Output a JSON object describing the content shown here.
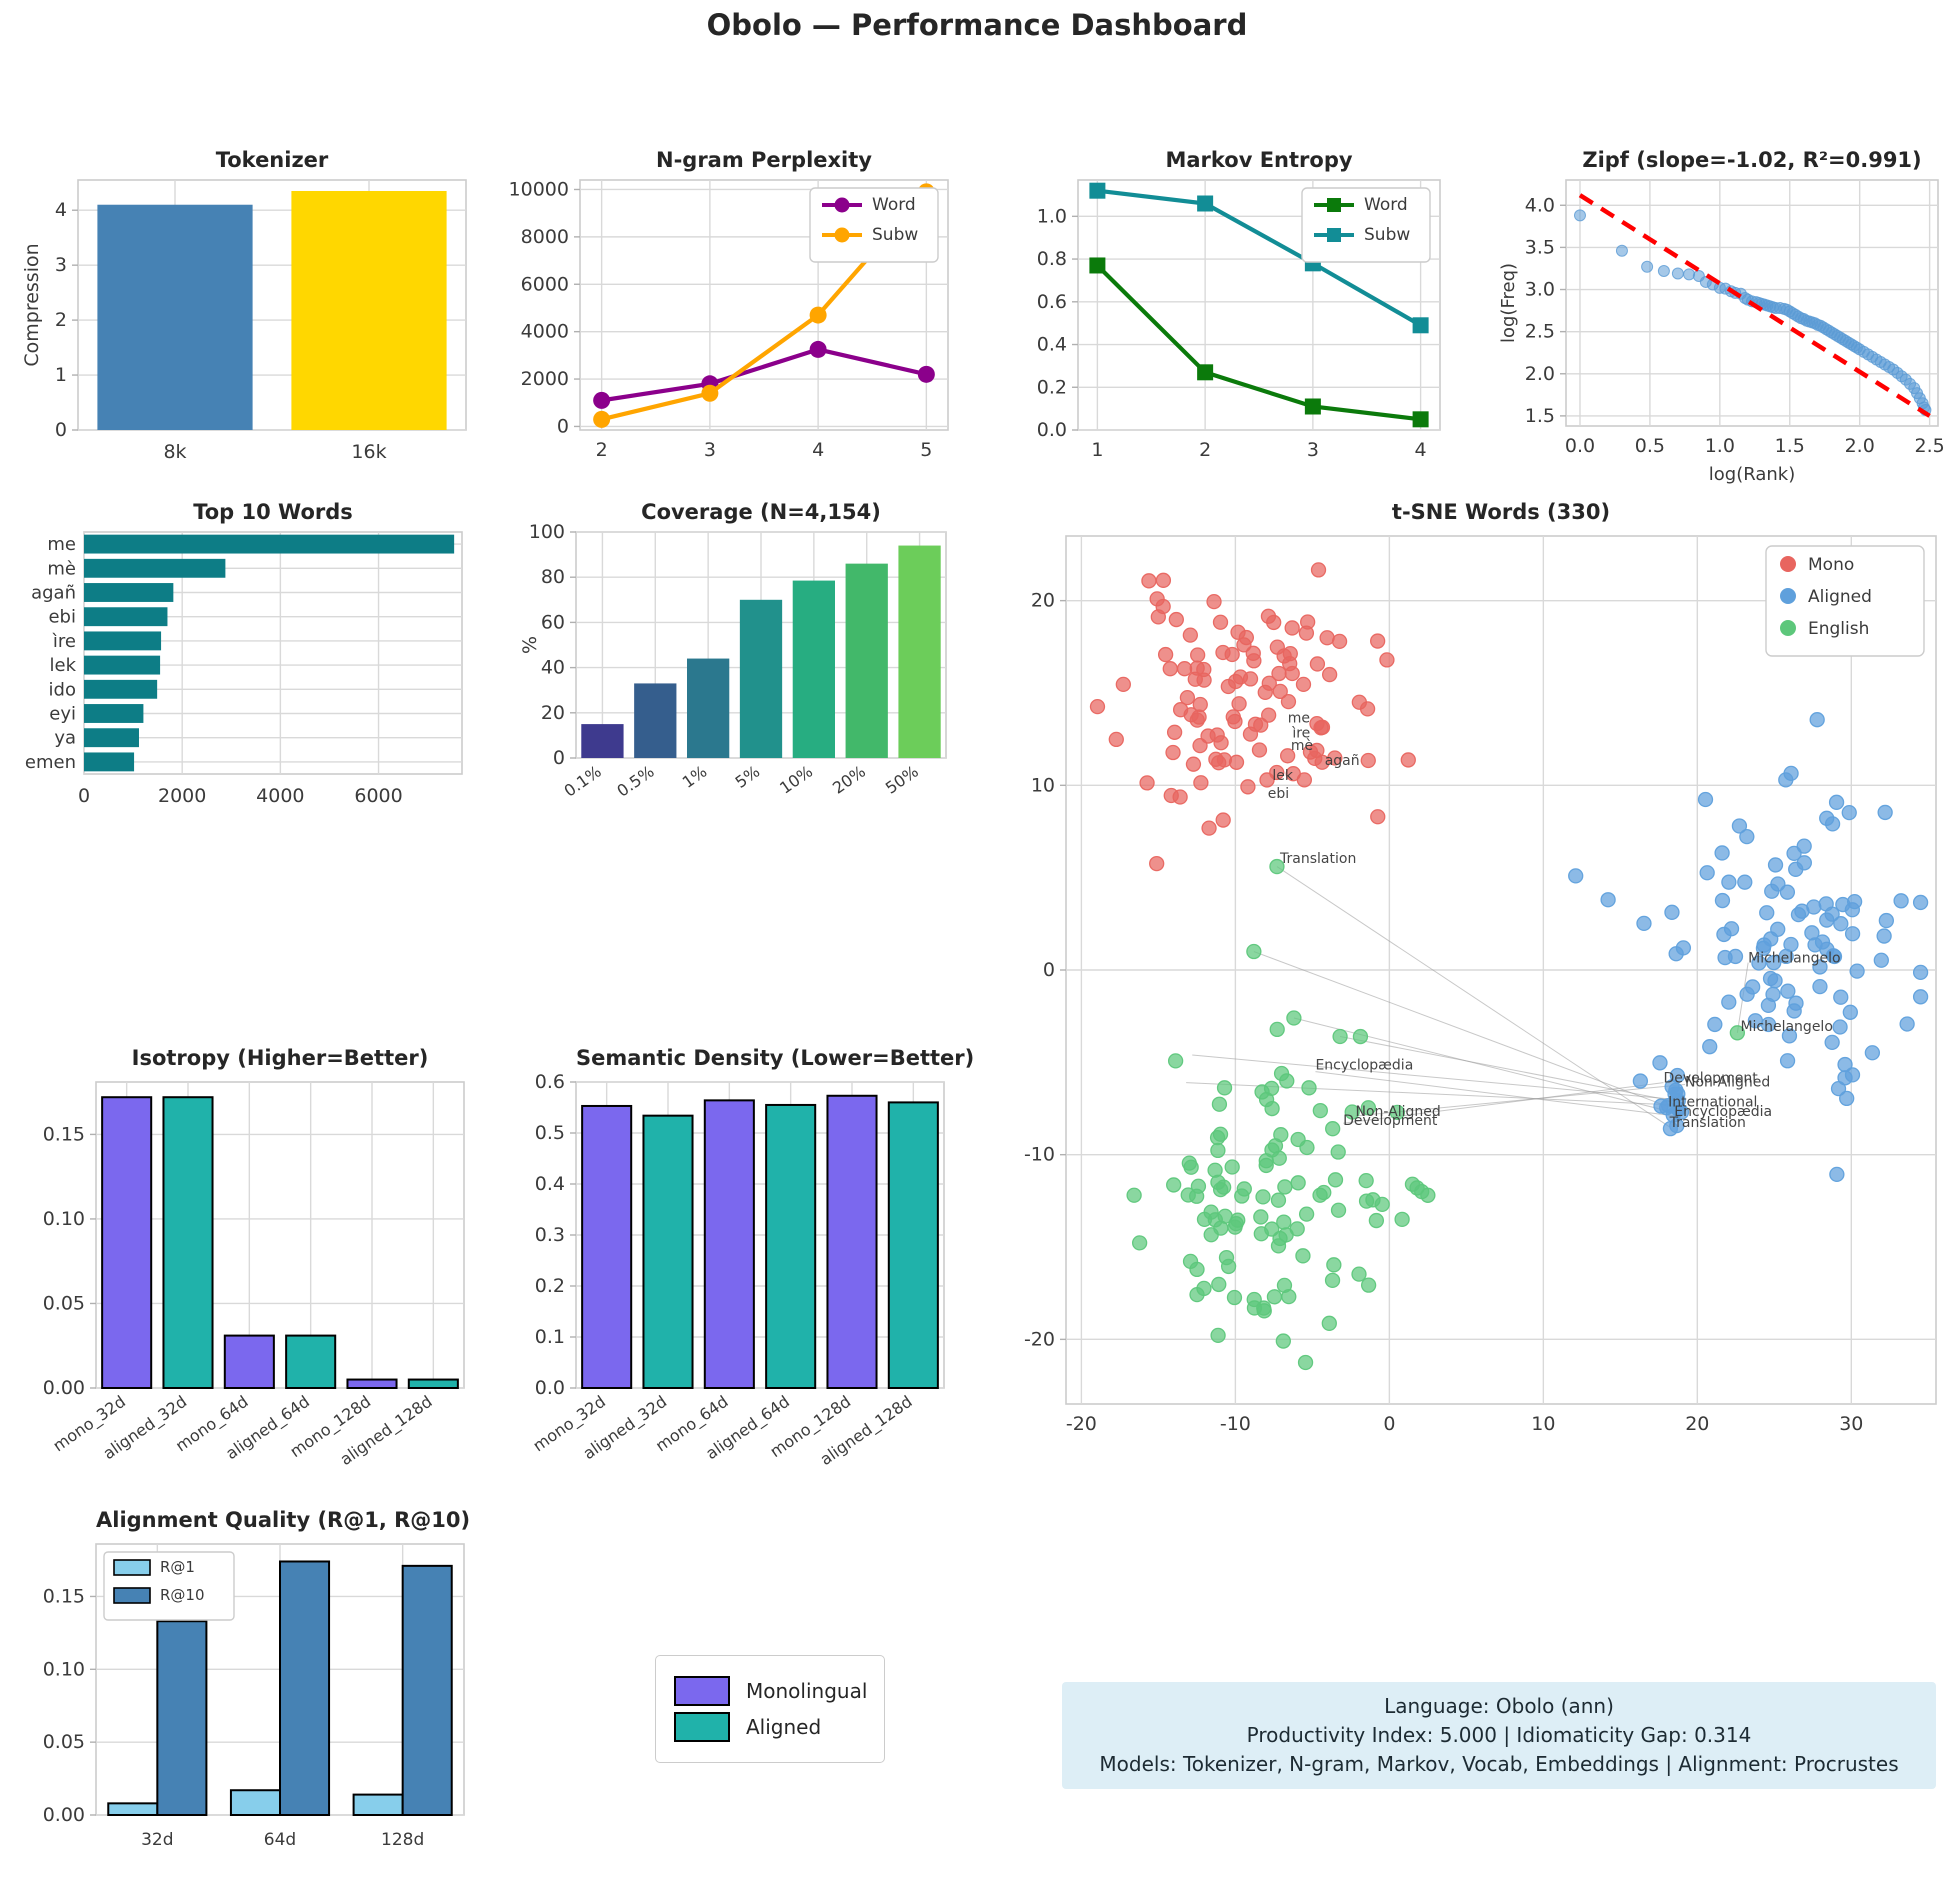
{
  "header": {
    "title": "Obolo — Performance Dashboard"
  },
  "info_box": {
    "lines": [
      "Language: Obolo (ann)",
      "Productivity Index: 5.000  |  Idiomaticity Gap: 0.314",
      "Models: Tokenizer, N-gram, Markov, Vocab, Embeddings  |  Alignment: Procrustes"
    ],
    "background": "#ddeef6"
  },
  "legend_box": {
    "items": [
      {
        "label": "Monolingual",
        "color": "#7b68ee"
      },
      {
        "label": "Aligned",
        "color": "#20b2aa"
      }
    ]
  },
  "chart_data": [
    {
      "id": "tokenizer",
      "type": "bar",
      "title": "Tokenizer",
      "ylabel": "Compression",
      "categories": [
        "8k",
        "16k"
      ],
      "values": [
        4.1,
        4.35
      ],
      "bar_colors": [
        "#4682b4",
        "#ffd700"
      ],
      "ylim": [
        0,
        4.55
      ],
      "yticks": [
        0,
        1,
        2,
        3,
        4
      ],
      "ytick_labels": [
        "0",
        "1",
        "2",
        "3",
        "4"
      ]
    },
    {
      "id": "ngram",
      "type": "line",
      "title": "N-gram Perplexity",
      "x": [
        2,
        3,
        4,
        5
      ],
      "xticks": [
        2,
        3,
        4,
        5
      ],
      "xtick_labels": [
        "2",
        "3",
        "4",
        "5"
      ],
      "xlim": [
        1.8,
        5.2
      ],
      "ylim": [
        -150,
        10400
      ],
      "yticks": [
        0,
        2000,
        4000,
        6000,
        8000,
        10000
      ],
      "ytick_labels": [
        "0",
        "2000",
        "4000",
        "6000",
        "8000",
        "10000"
      ],
      "series": [
        {
          "name": "Word",
          "color": "#8b008b",
          "marker": "circle",
          "values": [
            1100,
            1800,
            3250,
            2200
          ]
        },
        {
          "name": "Subw",
          "color": "#ffa500",
          "marker": "circle",
          "values": [
            300,
            1400,
            4700,
            9900
          ]
        }
      ],
      "legend_pos": "top-right"
    },
    {
      "id": "markov",
      "type": "line",
      "title": "Markov Entropy",
      "x": [
        1,
        2,
        3,
        4
      ],
      "xticks": [
        1,
        2,
        3,
        4
      ],
      "xtick_labels": [
        "1",
        "2",
        "3",
        "4"
      ],
      "xlim": [
        0.82,
        4.18
      ],
      "ylim": [
        0,
        1.17
      ],
      "yticks": [
        0,
        0.2,
        0.4,
        0.6,
        0.8,
        1.0
      ],
      "ytick_labels": [
        "0.0",
        "0.2",
        "0.4",
        "0.6",
        "0.8",
        "1.0"
      ],
      "series": [
        {
          "name": "Word",
          "color": "#0b7a0b",
          "marker": "square",
          "values": [
            0.77,
            0.27,
            0.11,
            0.05
          ]
        },
        {
          "name": "Subw",
          "color": "#128d96",
          "marker": "square",
          "values": [
            1.12,
            1.06,
            0.78,
            0.49
          ]
        }
      ],
      "legend_pos": "top-right"
    },
    {
      "id": "zipf",
      "type": "scatter",
      "title": "Zipf (slope=-1.02, R²=0.991)",
      "xlabel": "log(Rank)",
      "ylabel": "log(Freq)",
      "xlim": [
        -0.1,
        2.56
      ],
      "ylim": [
        1.38,
        4.3
      ],
      "xticks": [
        0,
        0.5,
        1.0,
        1.5,
        2.0,
        2.5
      ],
      "xtick_labels": [
        "0.0",
        "0.5",
        "1.0",
        "1.5",
        "2.0",
        "2.5"
      ],
      "yticks": [
        1.5,
        2.0,
        2.5,
        3.0,
        3.5,
        4.0
      ],
      "ytick_labels": [
        "1.5",
        "2.0",
        "2.5",
        "3.0",
        "3.5",
        "4.0"
      ],
      "point_color": "#5b9bd5",
      "points": [
        [
          0.0,
          3.88
        ],
        [
          0.3,
          3.46
        ],
        [
          0.48,
          3.27
        ],
        [
          0.6,
          3.22
        ],
        [
          0.7,
          3.19
        ],
        [
          0.78,
          3.18
        ],
        [
          0.85,
          3.16
        ],
        [
          0.9,
          3.09
        ],
        [
          0.95,
          3.06
        ],
        [
          1.0,
          3.02
        ],
        [
          1.04,
          3.01
        ],
        [
          1.08,
          2.98
        ],
        [
          1.11,
          2.96
        ],
        [
          1.15,
          2.95
        ],
        [
          1.18,
          2.9
        ],
        [
          1.2,
          2.88
        ],
        [
          1.23,
          2.86
        ],
        [
          1.26,
          2.85
        ],
        [
          1.28,
          2.84
        ],
        [
          1.3,
          2.83
        ],
        [
          1.32,
          2.82
        ],
        [
          1.34,
          2.81
        ],
        [
          1.36,
          2.8
        ],
        [
          1.38,
          2.79
        ],
        [
          1.4,
          2.78
        ],
        [
          1.43,
          2.78
        ],
        [
          1.46,
          2.77
        ],
        [
          1.48,
          2.76
        ],
        [
          1.5,
          2.74
        ],
        [
          1.52,
          2.72
        ],
        [
          1.54,
          2.7
        ],
        [
          1.56,
          2.68
        ],
        [
          1.58,
          2.66
        ],
        [
          1.6,
          2.65
        ],
        [
          1.62,
          2.63
        ],
        [
          1.64,
          2.62
        ],
        [
          1.66,
          2.61
        ],
        [
          1.68,
          2.6
        ],
        [
          1.7,
          2.58
        ],
        [
          1.72,
          2.57
        ],
        [
          1.74,
          2.55
        ],
        [
          1.76,
          2.53
        ],
        [
          1.78,
          2.51
        ],
        [
          1.8,
          2.49
        ],
        [
          1.82,
          2.47
        ],
        [
          1.84,
          2.45
        ],
        [
          1.86,
          2.43
        ],
        [
          1.88,
          2.41
        ],
        [
          1.9,
          2.39
        ],
        [
          1.92,
          2.37
        ],
        [
          1.94,
          2.35
        ],
        [
          1.96,
          2.33
        ],
        [
          1.98,
          2.31
        ],
        [
          2.0,
          2.29
        ],
        [
          2.03,
          2.26
        ],
        [
          2.06,
          2.23
        ],
        [
          2.09,
          2.2
        ],
        [
          2.12,
          2.17
        ],
        [
          2.15,
          2.14
        ],
        [
          2.18,
          2.11
        ],
        [
          2.21,
          2.08
        ],
        [
          2.24,
          2.05
        ],
        [
          2.27,
          2.01
        ],
        [
          2.3,
          1.97
        ],
        [
          2.33,
          1.93
        ],
        [
          2.36,
          1.88
        ],
        [
          2.39,
          1.83
        ],
        [
          2.41,
          1.77
        ],
        [
          2.43,
          1.71
        ],
        [
          2.45,
          1.65
        ],
        [
          2.46,
          1.6
        ],
        [
          2.47,
          1.57
        ]
      ],
      "fit_line": {
        "x1": 0.0,
        "y1": 4.12,
        "x2": 2.5,
        "y2": 1.5,
        "color": "#ff0000"
      }
    },
    {
      "id": "top10",
      "type": "barh",
      "title": "Top 10 Words",
      "categories": [
        "me",
        "mè",
        "agañ",
        "ebi",
        "ìre",
        "lek",
        "ido",
        "eyi",
        "ya",
        "emen"
      ],
      "values": [
        7540,
        2880,
        1820,
        1700,
        1570,
        1550,
        1490,
        1210,
        1120,
        1020
      ],
      "color": "#0d7d86",
      "xlim": [
        0,
        7700
      ],
      "xticks": [
        0,
        2000,
        4000,
        6000
      ],
      "xtick_labels": [
        "0",
        "2000",
        "4000",
        "6000"
      ]
    },
    {
      "id": "coverage",
      "type": "bar",
      "title": "Coverage (N=4,154)",
      "ylabel": "%",
      "categories": [
        "0.1%",
        "0.5%",
        "1%",
        "5%",
        "10%",
        "20%",
        "50%"
      ],
      "values": [
        15,
        33,
        44,
        70,
        78.5,
        86,
        94
      ],
      "bar_colors": [
        "#3e3a8e",
        "#355e8d",
        "#2b788e",
        "#21918c",
        "#27ad81",
        "#42b86a",
        "#6ccd5a"
      ],
      "ylim": [
        0,
        100
      ],
      "yticks": [
        0,
        20,
        40,
        60,
        80,
        100
      ],
      "ytick_labels": [
        "0",
        "20",
        "40",
        "60",
        "80",
        "100"
      ],
      "rotate_xticks": true
    },
    {
      "id": "tsne",
      "type": "tsne",
      "title": "t-SNE Words (330)",
      "xlim": [
        -21,
        35.5
      ],
      "ylim": [
        -23.5,
        23.5
      ],
      "xticks": [
        -20,
        -10,
        0,
        10,
        20,
        30
      ],
      "xtick_labels": [
        "-20",
        "-10",
        "0",
        "10",
        "20",
        "30"
      ],
      "yticks": [
        -20,
        -10,
        0,
        10,
        20
      ],
      "ytick_labels": [
        "-20",
        "-10",
        "0",
        "10",
        "20"
      ],
      "legend": [
        {
          "label": "Mono",
          "color": "#e8655f"
        },
        {
          "label": "Aligned",
          "color": "#5fa0dc"
        },
        {
          "label": "English",
          "color": "#5dc77b"
        }
      ],
      "clusters": [
        {
          "name": "mono",
          "color": "#e8655f",
          "count": 105,
          "cx": -9.5,
          "cy": 14.3,
          "sx": 4.0,
          "sy": 3.0,
          "seed": 11
        },
        {
          "name": "aligned",
          "color": "#5fa0dc",
          "count": 100,
          "cx": 25.5,
          "cy": 2.3,
          "sx": 4.3,
          "sy": 4.0,
          "seed": 22
        },
        {
          "name": "aligned-sub",
          "color": "#5fa0dc",
          "count": 15,
          "cx": 18.4,
          "cy": -7.2,
          "sx": 0.5,
          "sy": 0.9,
          "seed": 33
        },
        {
          "name": "english",
          "color": "#5dc77b",
          "count": 100,
          "cx": -8.5,
          "cy": -13.0,
          "sx": 4.2,
          "sy": 4.0,
          "seed": 44
        }
      ],
      "extra_points": [
        {
          "color": "#5dc77b",
          "pts": [
            [
              -7.3,
              5.6
            ],
            [
              -8.8,
              1.0
            ],
            [
              -6.2,
              -2.6
            ],
            [
              -3.2,
              -3.6
            ],
            [
              1.8,
              -11.8
            ],
            [
              2.1,
              -12.0
            ],
            [
              2.5,
              -12.2
            ],
            [
              1.5,
              -11.6
            ],
            [
              22.6,
              -3.4
            ]
          ]
        }
      ],
      "connectors": [
        [
          -7.3,
          5.6,
          18.2,
          -8.5
        ],
        [
          -4.8,
          -5.5,
          18.5,
          -7.9
        ],
        [
          -2.2,
          -7.9,
          19.2,
          -6.2
        ],
        [
          -3.0,
          -8.3,
          17.8,
          -6.1
        ],
        [
          -8.8,
          1.0,
          18.1,
          -7.4
        ],
        [
          -12.8,
          -4.6,
          18.4,
          -7.0
        ],
        [
          -13.2,
          -6.1,
          18.3,
          -7.3
        ],
        [
          -6.2,
          -2.6,
          18.4,
          -7.7
        ],
        [
          -3.2,
          -3.6,
          18.5,
          -7.1
        ],
        [
          22.6,
          -3.4,
          23.3,
          0.4
        ]
      ],
      "labels": [
        {
          "text": "me",
          "x": -6.6,
          "y": 13.4,
          "color": "#e8655f"
        },
        {
          "text": "ìre",
          "x": -6.3,
          "y": 12.6,
          "color": "#e8655f"
        },
        {
          "text": "mè",
          "x": -6.4,
          "y": 11.9,
          "color": "#e8655f"
        },
        {
          "text": "agañ",
          "x": -4.2,
          "y": 11.1,
          "color": "#e8655f"
        },
        {
          "text": "lek",
          "x": -7.6,
          "y": 10.3,
          "color": "#e8655f"
        },
        {
          "text": "ebi",
          "x": -7.9,
          "y": 9.3,
          "color": "#e8655f"
        },
        {
          "text": "Translation",
          "x": -7.1,
          "y": 5.8,
          "color": "#5dc77b"
        },
        {
          "text": "Encyclopædia",
          "x": -4.8,
          "y": -5.4,
          "color": "#5dc77b"
        },
        {
          "text": "Non-Aligned",
          "x": -2.2,
          "y": -7.9,
          "color": "#5dc77b"
        },
        {
          "text": "Development",
          "x": -3.0,
          "y": -8.4,
          "color": "#5dc77b"
        },
        {
          "text": "Michelangelo",
          "x": 22.8,
          "y": -3.3,
          "color": "#5dc77b"
        },
        {
          "text": "Michelangelo",
          "x": 23.3,
          "y": 0.4,
          "color": "#5fa0dc"
        },
        {
          "text": "Development",
          "x": 17.8,
          "y": -6.1,
          "color": "#5fa0dc"
        },
        {
          "text": "Non-Aligned",
          "x": 19.2,
          "y": -6.3,
          "color": "#5fa0dc"
        },
        {
          "text": "International",
          "x": 18.1,
          "y": -7.4,
          "color": "#5fa0dc"
        },
        {
          "text": "Encyclopædia",
          "x": 18.5,
          "y": -7.9,
          "color": "#5fa0dc"
        },
        {
          "text": "Translation",
          "x": 18.2,
          "y": -8.5,
          "color": "#5fa0dc"
        }
      ]
    },
    {
      "id": "isotropy",
      "type": "bar",
      "title": "Isotropy (Higher=Better)",
      "categories": [
        "mono_32d",
        "aligned_32d",
        "mono_64d",
        "aligned_64d",
        "mono_128d",
        "aligned_128d"
      ],
      "values": [
        0.172,
        0.172,
        0.031,
        0.031,
        0.005,
        0.005
      ],
      "bar_colors": [
        "#7b68ee",
        "#20b2aa",
        "#7b68ee",
        "#20b2aa",
        "#7b68ee",
        "#20b2aa"
      ],
      "edge_color": "#000000",
      "ylim": [
        0,
        0.181
      ],
      "yticks": [
        0,
        0.05,
        0.1,
        0.15
      ],
      "ytick_labels": [
        "0.00",
        "0.05",
        "0.10",
        "0.15"
      ],
      "rotate_xticks": true
    },
    {
      "id": "semantic",
      "type": "bar",
      "title": "Semantic Density (Lower=Better)",
      "categories": [
        "mono_32d",
        "aligned_32d",
        "mono_64d",
        "aligned_64d",
        "mono_128d",
        "aligned_128d"
      ],
      "values": [
        0.553,
        0.534,
        0.564,
        0.555,
        0.573,
        0.56
      ],
      "bar_colors": [
        "#7b68ee",
        "#20b2aa",
        "#7b68ee",
        "#20b2aa",
        "#7b68ee",
        "#20b2aa"
      ],
      "edge_color": "#000000",
      "ylim": [
        0,
        0.6
      ],
      "yticks": [
        0,
        0.1,
        0.2,
        0.3,
        0.4,
        0.5,
        0.6
      ],
      "ytick_labels": [
        "0.0",
        "0.1",
        "0.2",
        "0.3",
        "0.4",
        "0.5",
        "0.6"
      ],
      "rotate_xticks": true
    },
    {
      "id": "alignment",
      "type": "groupbar",
      "title": "Alignment Quality (R@1, R@10)",
      "categories": [
        "32d",
        "64d",
        "128d"
      ],
      "series": [
        {
          "name": "R@1",
          "color": "#87ceeb",
          "values": [
            0.008,
            0.017,
            0.014
          ]
        },
        {
          "name": "R@10",
          "color": "#4682b4",
          "values": [
            0.133,
            0.174,
            0.171
          ]
        }
      ],
      "edge_color": "#000000",
      "ylim": [
        0,
        0.186
      ],
      "yticks": [
        0,
        0.05,
        0.1,
        0.15
      ],
      "ytick_labels": [
        "0.00",
        "0.05",
        "0.10",
        "0.15"
      ],
      "legend_pos": "top-left"
    }
  ]
}
